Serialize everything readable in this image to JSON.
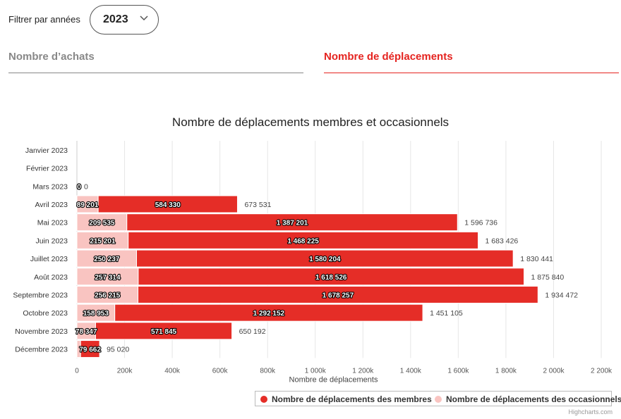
{
  "filter": {
    "label": "Filtrer par années",
    "selected_year": "2023"
  },
  "tabs": [
    {
      "label": "Nombre d’achats",
      "active": false
    },
    {
      "label": "Nombre de déplacements",
      "active": true
    }
  ],
  "colors": {
    "members": "#e52d27",
    "occasional": "#f9c4c1",
    "accent": "#e52420"
  },
  "icons": {
    "select": "chevron-down-icon",
    "legend": "circle-marker-icon"
  },
  "credits": "Highcharts.com",
  "chart_data": {
    "type": "bar",
    "stacked": true,
    "orientation": "horizontal",
    "title": "Nombre de déplacements membres et occasionnels",
    "xlabel": "Nombre de déplacements",
    "categories": [
      "Janvier 2023",
      "Février 2023",
      "Mars 2023",
      "Avril 2023",
      "Mai 2023",
      "Juin 2023",
      "Juillet 2023",
      "Août 2023",
      "Septembre 2023",
      "Octobre 2023",
      "Novembre 2023",
      "Décembre 2023"
    ],
    "series": [
      {
        "name": "Nombre de déplacements des occasionnels",
        "values": [
          null,
          null,
          0,
          89201,
          209535,
          215201,
          250237,
          257314,
          256215,
          158953,
          78347,
          15358
        ],
        "labels": [
          "",
          "",
          "0",
          "89 201",
          "209 535",
          "215 201",
          "250 237",
          "257 314",
          "256 215",
          "158 953",
          "78 347",
          ""
        ]
      },
      {
        "name": "Nombre de déplacements des membres",
        "values": [
          null,
          null,
          0,
          584330,
          1387201,
          1468225,
          1580204,
          1618526,
          1678257,
          1292152,
          571845,
          79662
        ],
        "labels": [
          "",
          "",
          "0",
          "584 330",
          "1 387 201",
          "1 468 225",
          "1 580 204",
          "1 618 526",
          "1 678 257",
          "1 292 152",
          "571 845",
          "79 662"
        ]
      }
    ],
    "totals": [
      "",
      "",
      "0",
      "673 531",
      "1 596 736",
      "1 683 426",
      "1 830 441",
      "1 875 840",
      "1 934 472",
      "1 451 105",
      "650 192",
      "95 020"
    ],
    "xlim": [
      0,
      2200000
    ],
    "ticks": [
      0,
      200000,
      400000,
      600000,
      800000,
      1000000,
      1200000,
      1400000,
      1600000,
      1800000,
      2000000,
      2200000
    ],
    "tick_labels": [
      "0",
      "200k",
      "400k",
      "600k",
      "800k",
      "1 000k",
      "1 200k",
      "1 400k",
      "1 600k",
      "1 800k",
      "2 000k",
      "2 200k"
    ],
    "grid": true,
    "legend_position": "bottom-right"
  }
}
